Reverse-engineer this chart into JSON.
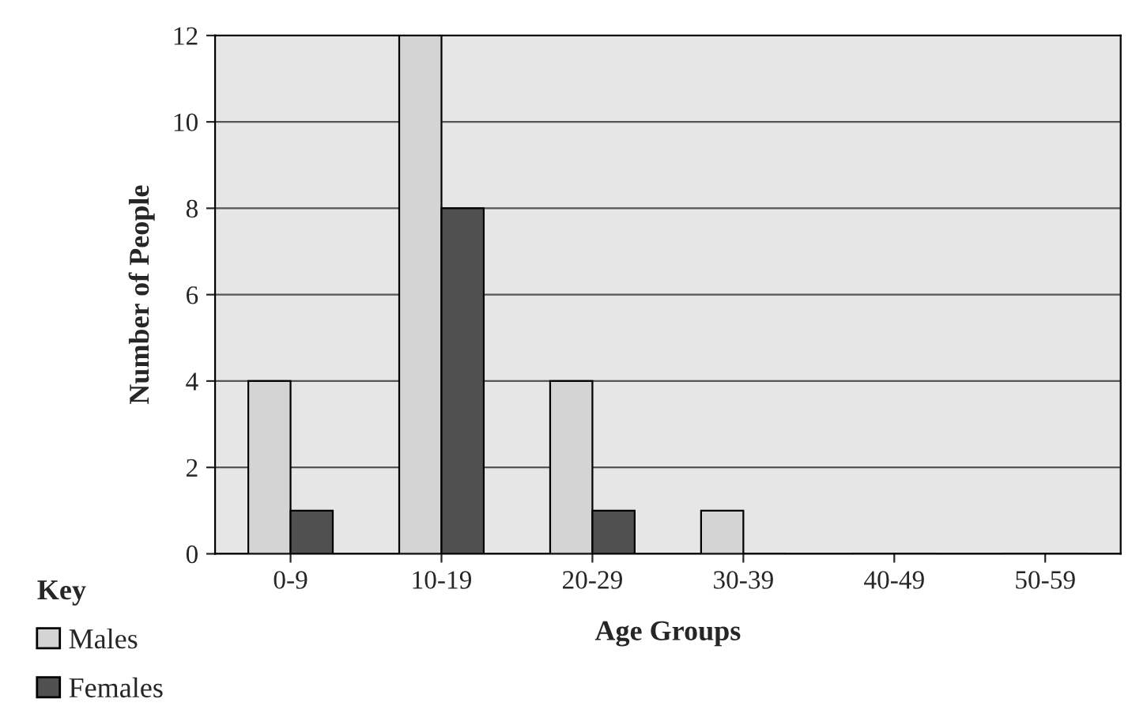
{
  "chart_data": {
    "type": "bar",
    "xlabel": "Age Groups",
    "ylabel": "Number of People",
    "legend_title": "Key",
    "legend": "bottom left",
    "grid": "y",
    "categories": [
      "0-9",
      "10-19",
      "20-29",
      "30-39",
      "40-49",
      "50-59"
    ],
    "ylim": [
      0,
      12
    ],
    "yticks": [
      0,
      2,
      4,
      6,
      8,
      10,
      12
    ],
    "series": [
      {
        "name": "Males",
        "color": "#d4d4d4",
        "values": [
          4,
          12,
          4,
          1,
          0,
          0
        ]
      },
      {
        "name": "Females",
        "color": "#505050",
        "values": [
          1,
          8,
          1,
          0,
          0,
          0
        ]
      }
    ]
  }
}
